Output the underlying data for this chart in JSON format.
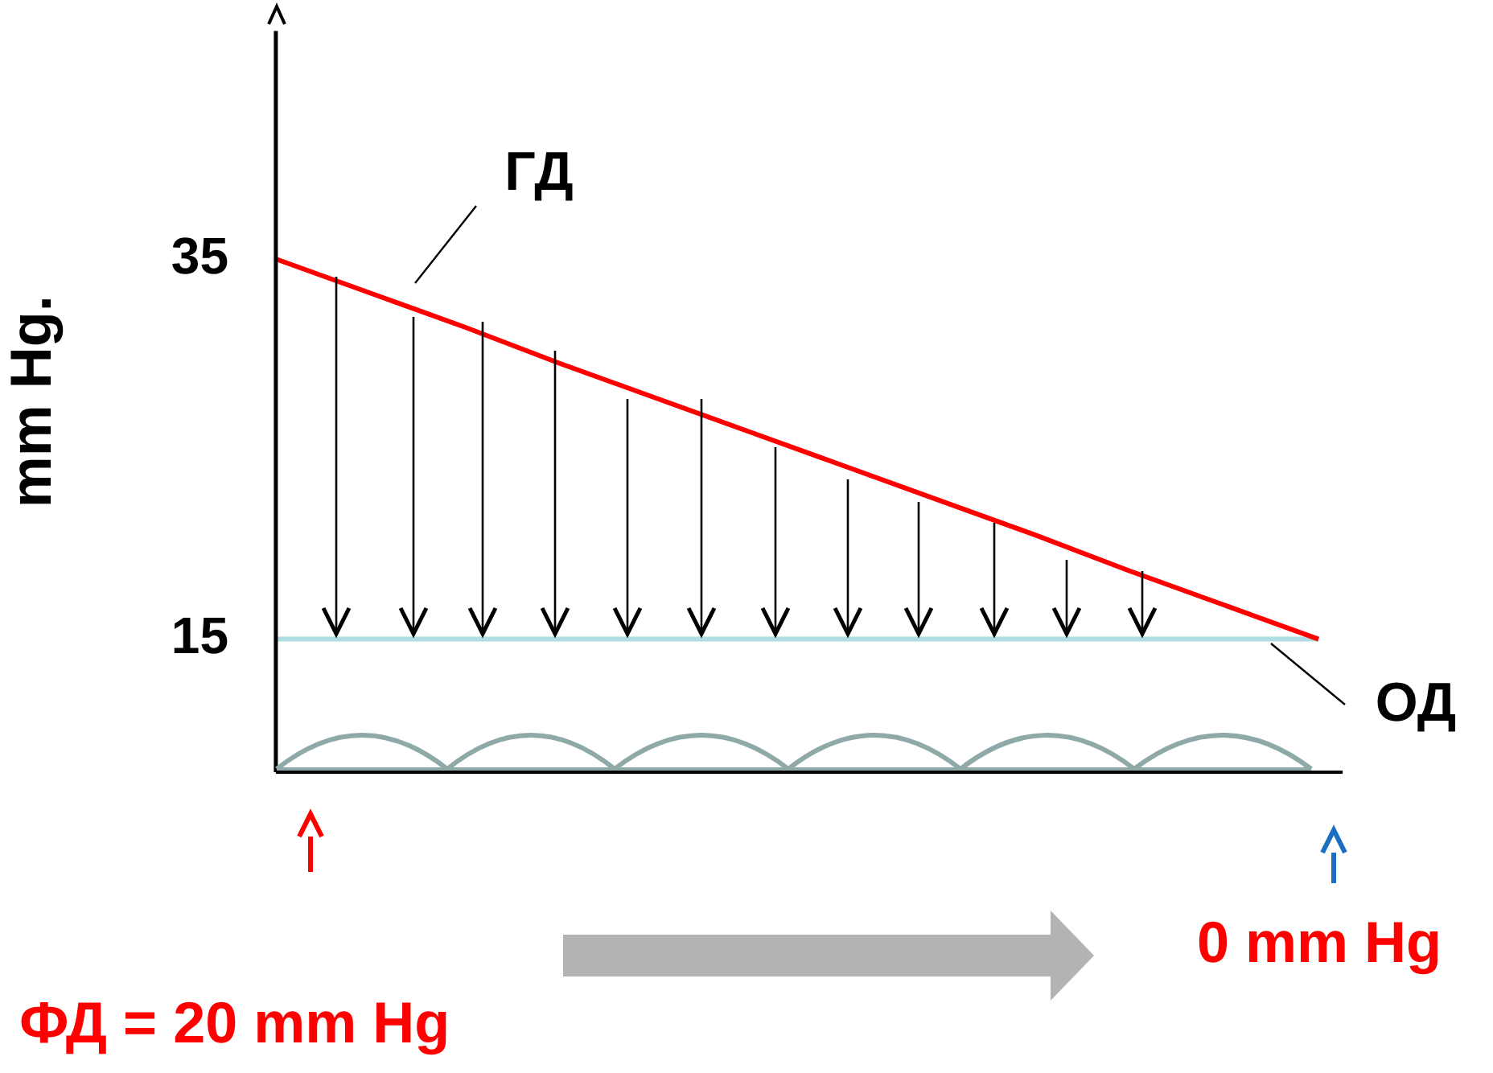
{
  "chart_data": {
    "type": "line",
    "ylabel": "mm Hg.",
    "categories": [
      null,
      null,
      null,
      null,
      null,
      null,
      null,
      null,
      null,
      null,
      null,
      null
    ],
    "series": [
      {
        "color": "#ff0000",
        "values": [
          35,
          33.2,
          31.4,
          29.5,
          27.7,
          25.9,
          24.1,
          22.3,
          20.5,
          18.6,
          16.8,
          15
        ]
      },
      {
        "color": "#b0dde3",
        "values": [
          15,
          15,
          15,
          15,
          15,
          15,
          15,
          15,
          15,
          15,
          15,
          15
        ]
      }
    ],
    "ylim": [
      8,
      47
    ],
    "yticks": [
      35,
      15
    ],
    "tick_labels": "y",
    "grid": false,
    "legend": false,
    "marker": "none",
    "annotations": [
      "ГД",
      "ОД",
      "ФД = 20 mm Hg",
      "0 mm Hg"
    ]
  }
}
